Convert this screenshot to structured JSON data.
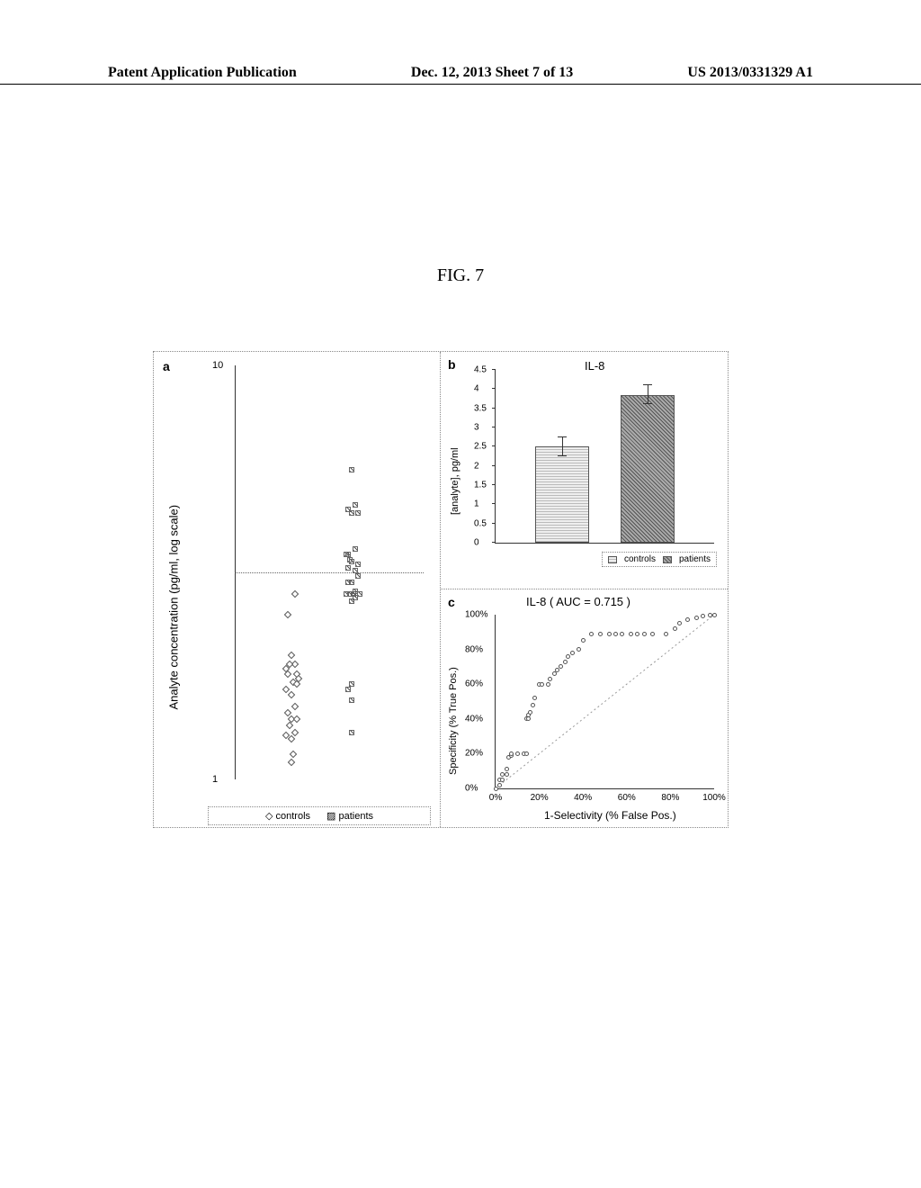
{
  "header": {
    "left": "Patent Application Publication",
    "center": "Dec. 12, 2013  Sheet 7 of 13",
    "right": "US 2013/0331329 A1"
  },
  "figure_title": "FIG. 7",
  "panel_a": {
    "label": "a",
    "ylabel": "Analyte concentration (pg/ml, log scale)",
    "type": "scatter",
    "yscale": "log",
    "ylim": [
      1,
      10
    ],
    "ytick_labels": [
      "1",
      "10"
    ],
    "series": [
      "controls",
      "patients"
    ],
    "controls_x": 0.3,
    "patients_x": 0.62,
    "dashline_at_y": 3.16,
    "controls_y": [
      2.8,
      2.5,
      2.0,
      1.9,
      1.85,
      1.8,
      1.9,
      1.75,
      1.8,
      1.72,
      1.7,
      1.65,
      1.6,
      1.5,
      1.45,
      1.4,
      1.4,
      1.35,
      1.3,
      1.28,
      1.25,
      1.15,
      1.1
    ],
    "controls_jitter": [
      0.02,
      -0.02,
      0.0,
      0.02,
      -0.03,
      0.03,
      -0.01,
      0.04,
      -0.02,
      0.01,
      0.03,
      -0.03,
      0.0,
      0.02,
      -0.02,
      0.0,
      0.03,
      -0.01,
      0.02,
      -0.03,
      0.0,
      0.01,
      0.0
    ],
    "patients_y": [
      5.6,
      4.6,
      4.5,
      4.4,
      4.4,
      3.5,
      3.6,
      3.5,
      3.3,
      3.4,
      3.35,
      3.2,
      3.25,
      3.1,
      3.0,
      3.0,
      2.85,
      2.8,
      2.8,
      2.8,
      2.8,
      2.7,
      2.75,
      1.7,
      1.65,
      1.55,
      1.3
    ],
    "patients_jitter": [
      0.0,
      0.02,
      -0.02,
      0.03,
      0.0,
      -0.03,
      0.02,
      -0.02,
      0.03,
      -0.01,
      0.0,
      0.02,
      -0.02,
      0.03,
      0.0,
      -0.02,
      0.02,
      -0.03,
      0.01,
      0.04,
      -0.01,
      0.0,
      0.02,
      0.0,
      -0.02,
      0.0,
      0.0
    ],
    "legend": {
      "controls": "controls",
      "patients": "patients",
      "controls_marker": "◇",
      "patients_marker": "▨"
    }
  },
  "panel_b": {
    "label": "b",
    "title": "IL-8",
    "ylabel": "[analyte], pg/ml",
    "type": "bar",
    "ylim": [
      0,
      4.5
    ],
    "ytick_step": 0.5,
    "bars": [
      {
        "name": "controls",
        "value": 2.5,
        "err": 0.25
      },
      {
        "name": "patients",
        "value": 3.85,
        "err": 0.25
      }
    ],
    "legend": {
      "controls": "controls",
      "patients": "patients"
    },
    "colors": {
      "controls_fill": "#dddddd",
      "patients_fill": "#888888"
    }
  },
  "panel_c": {
    "label": "c",
    "title": "IL-8      ( AUC = 0.715 )",
    "ylabel": "Specificity (% True Pos.)",
    "xlabel": "1-Selectivity (% False Pos.)",
    "type": "roc",
    "xlim": [
      0,
      100
    ],
    "ylim": [
      0,
      100
    ],
    "xtick_step": 20,
    "ytick_step": 20,
    "tick_suffix": "%",
    "roc_points": [
      [
        0,
        0
      ],
      [
        2,
        2
      ],
      [
        2,
        5
      ],
      [
        3,
        5
      ],
      [
        3,
        8
      ],
      [
        5,
        8
      ],
      [
        5,
        11
      ],
      [
        6,
        18
      ],
      [
        7,
        19
      ],
      [
        7,
        20
      ],
      [
        10,
        20
      ],
      [
        13,
        20
      ],
      [
        14,
        20
      ],
      [
        14,
        40
      ],
      [
        15,
        40
      ],
      [
        15,
        42
      ],
      [
        16,
        44
      ],
      [
        17,
        48
      ],
      [
        18,
        52
      ],
      [
        20,
        60
      ],
      [
        21,
        60
      ],
      [
        24,
        60
      ],
      [
        25,
        63
      ],
      [
        27,
        66
      ],
      [
        28,
        68
      ],
      [
        30,
        70
      ],
      [
        32,
        73
      ],
      [
        33,
        76
      ],
      [
        35,
        78
      ],
      [
        38,
        80
      ],
      [
        40,
        85
      ],
      [
        44,
        89
      ],
      [
        48,
        89
      ],
      [
        52,
        89
      ],
      [
        55,
        89
      ],
      [
        58,
        89
      ],
      [
        62,
        89
      ],
      [
        65,
        89
      ],
      [
        68,
        89
      ],
      [
        72,
        89
      ],
      [
        78,
        89
      ],
      [
        82,
        92
      ],
      [
        84,
        95
      ],
      [
        88,
        97
      ],
      [
        92,
        98
      ],
      [
        95,
        99
      ],
      [
        98,
        100
      ],
      [
        100,
        100
      ]
    ]
  },
  "styling": {
    "font_family": "Arial, sans-serif",
    "text_color": "#000000",
    "border_color": "#888888",
    "axis_color": "#333333"
  }
}
